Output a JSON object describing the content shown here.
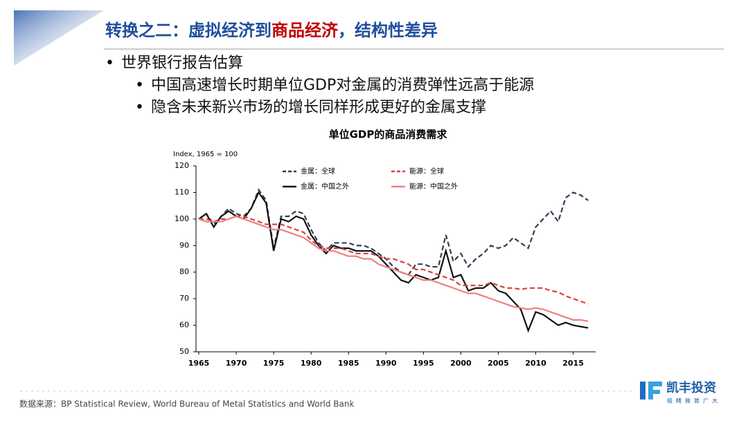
{
  "header": {
    "title_parts": [
      "转换之二：虚拟经济到",
      "商品经济",
      "，结构性差异"
    ]
  },
  "bullets": [
    "世界银行报告估算"
  ],
  "sub_bullets": [
    "中国高速增长时期单位GDP对金属的消费弹性远高于能源",
    "隐含未来新兴市场的增长同样形成更好的金属支撑"
  ],
  "chart_data": {
    "type": "line",
    "title": "单位GDP的商品消费需求",
    "y_label": "Index, 1965 = 100",
    "x": [
      1965,
      1966,
      1967,
      1968,
      1969,
      1970,
      1971,
      1972,
      1973,
      1974,
      1975,
      1976,
      1977,
      1978,
      1979,
      1980,
      1981,
      1982,
      1983,
      1984,
      1985,
      1986,
      1987,
      1988,
      1989,
      1990,
      1991,
      1992,
      1993,
      1994,
      1995,
      1996,
      1997,
      1998,
      1999,
      2000,
      2001,
      2002,
      2003,
      2004,
      2005,
      2006,
      2007,
      2008,
      2009,
      2010,
      2011,
      2012,
      2013,
      2014,
      2015,
      2016,
      2017
    ],
    "series": [
      {
        "name": "金属：全球",
        "color": "#2e3d52",
        "style": "dashed",
        "values": [
          100,
          102,
          98,
          101,
          104,
          102,
          101,
          104,
          111,
          107,
          89,
          101,
          101,
          103,
          102,
          96,
          91,
          88,
          91,
          91,
          91,
          90,
          90,
          89,
          87,
          85,
          82,
          80,
          79,
          83,
          83,
          82,
          82,
          94,
          84,
          87,
          82,
          85,
          87,
          90,
          89,
          90,
          93,
          91,
          89,
          97,
          100,
          103,
          99,
          108,
          110,
          109,
          107
        ]
      },
      {
        "name": "金属：中国之外",
        "color": "#111111",
        "style": "solid",
        "values": [
          100,
          102,
          97,
          101,
          103,
          101,
          100,
          104,
          110,
          106,
          88,
          100,
          99,
          101,
          100,
          94,
          90,
          87,
          90,
          89,
          89,
          88,
          88,
          88,
          86,
          83,
          80,
          77,
          76,
          79,
          78,
          77,
          78,
          88,
          78,
          79,
          73,
          74,
          74,
          76,
          73,
          72,
          69,
          66,
          58,
          65,
          64,
          62,
          60,
          61,
          60,
          59.5,
          59
        ]
      },
      {
        "name": "能源：全球",
        "color": "#d9403f",
        "style": "dashed",
        "values": [
          100,
          100,
          99,
          100,
          100,
          101,
          101,
          100,
          99,
          98,
          98,
          98,
          97,
          96,
          95,
          92,
          90,
          89,
          89,
          89,
          88,
          87,
          87,
          87,
          86,
          85,
          85,
          84,
          83,
          81,
          81,
          80,
          79,
          78,
          77,
          75,
          75,
          75,
          75,
          76,
          75,
          74,
          74,
          73.5,
          74,
          74,
          74,
          73,
          72.5,
          71,
          70,
          69,
          68
        ]
      },
      {
        "name": "能源：中国之外",
        "color": "#ef7f7f",
        "style": "solid",
        "values": [
          100,
          99,
          99,
          99,
          100,
          101,
          100,
          99,
          98,
          97,
          96,
          96,
          95,
          94,
          93,
          91,
          89,
          88,
          88,
          87,
          86,
          86,
          85,
          85,
          83,
          82,
          81,
          80,
          79,
          78,
          77,
          77,
          76,
          75,
          74,
          73,
          72,
          72,
          71,
          70,
          69,
          68,
          67,
          66.5,
          66,
          66.5,
          66,
          65,
          64,
          63,
          62,
          62,
          61.5
        ]
      }
    ],
    "xlim": [
      1965,
      2018
    ],
    "xticks": [
      1965,
      1970,
      1975,
      1980,
      1985,
      1990,
      1995,
      2000,
      2005,
      2010,
      2015
    ],
    "ylim": [
      50,
      120
    ],
    "yticks": [
      50,
      60,
      70,
      80,
      90,
      100,
      110,
      120
    ],
    "grid": false
  },
  "footer": {
    "source": "数据来源：BP Statistical Review, World Bureau of Metal Statistics and World Bank",
    "logo_name": "凯丰投资",
    "logo_tagline": "极精微致广大"
  }
}
